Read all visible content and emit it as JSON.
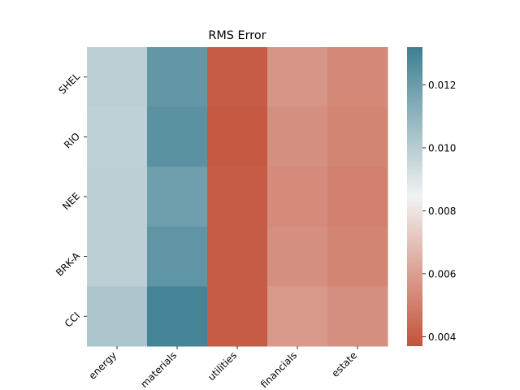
{
  "chart_data": {
    "type": "heatmap",
    "title": "RMS Error",
    "xlabel": "",
    "ylabel": "",
    "x_categories": [
      "energy",
      "materials",
      "utilities",
      "financials",
      "estate"
    ],
    "y_categories": [
      "SHEL",
      "RIO",
      "NEE",
      "BRK-A",
      "CCI"
    ],
    "values": [
      [
        0.0099,
        0.0122,
        0.004,
        0.0057,
        0.0053
      ],
      [
        0.0098,
        0.0124,
        0.0039,
        0.0055,
        0.0052
      ],
      [
        0.0099,
        0.0119,
        0.004,
        0.0054,
        0.0051
      ],
      [
        0.0099,
        0.0123,
        0.004,
        0.0055,
        0.0052
      ],
      [
        0.0103,
        0.013,
        0.004,
        0.0058,
        0.0055
      ]
    ],
    "colorbar": {
      "range": [
        0.0037,
        0.0132
      ],
      "ticks": [
        0.004,
        0.006,
        0.008,
        0.01,
        0.012
      ],
      "tick_labels": [
        "0.004",
        "0.006",
        "0.008",
        "0.010",
        "0.012"
      ],
      "colormap": [
        "#c4523a",
        "#f2f2f2",
        "#3d7f92"
      ]
    },
    "grid": false,
    "legend": "right colorbar"
  }
}
